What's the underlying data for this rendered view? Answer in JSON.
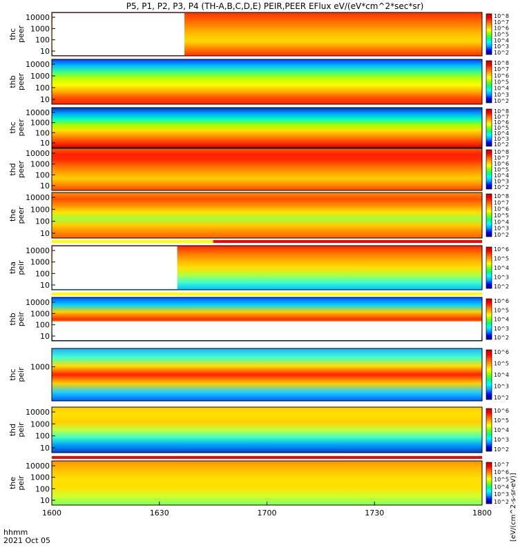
{
  "title": "P5, P1, P2, P3, P4 (TH-A,B,C,D,E) PEIR,PEER EFlux eV/(eV*cm^2*sec*sr)",
  "footer": {
    "axis_label": "hhmm",
    "date": "2021 Oct 05"
  },
  "colorbar_unit_label": "[eV/(cm^2-s-sr-eV)]",
  "colors": {
    "spectrum": [
      "#000080",
      "#0000ff",
      "#00a0ff",
      "#00ffff",
      "#00ff80",
      "#80ff00",
      "#ffff00",
      "#ffb000",
      "#ff6000",
      "#ff0000",
      "#c00000"
    ],
    "flag_red": "#ff0000",
    "flag_yellow": "#ffff00",
    "frame": "#000000"
  },
  "chart_data": {
    "type": "heatmap",
    "x_axis": {
      "label": "hhmm",
      "ticks": [
        "1600",
        "1630",
        "1700",
        "1730",
        "1800"
      ],
      "range": [
        "1600",
        "1800"
      ]
    },
    "panels": [
      {
        "id": "thc_peer",
        "ylabel": [
          "thc",
          "peer"
        ],
        "y_scale": "log",
        "y_ticks": [
          "10000",
          "1000",
          "100",
          "10"
        ],
        "cbar_ticks": [
          "10^8",
          "10^7",
          "10^6",
          "10^5",
          "10^4",
          "10^3",
          "10^2"
        ],
        "data_start": "1637"
      },
      {
        "id": "thb_peer",
        "ylabel": [
          "thb",
          "peer"
        ],
        "y_scale": "log",
        "y_ticks": [
          "10000",
          "1000",
          "100",
          "10"
        ],
        "cbar_ticks": [
          "10^8",
          "10^7",
          "10^6",
          "10^5",
          "10^4",
          "10^3",
          "10^2"
        ]
      },
      {
        "id": "thc_peer_2",
        "ylabel": [
          "thc",
          "peer"
        ],
        "y_scale": "log",
        "y_ticks": [
          "10000",
          "1000",
          "100",
          "10"
        ],
        "cbar_ticks": [
          "10^8",
          "10^7",
          "10^6",
          "10^5",
          "10^4",
          "10^3",
          "10^2"
        ]
      },
      {
        "id": "thd_peer",
        "ylabel": [
          "thd",
          "peer"
        ],
        "y_scale": "log",
        "y_ticks": [
          "10000",
          "1000",
          "100",
          "10"
        ],
        "cbar_ticks": [
          "10^8",
          "10^7",
          "10^6",
          "10^5",
          "10^4",
          "10^3",
          "10^2"
        ]
      },
      {
        "id": "the_peer",
        "ylabel": [
          "the",
          "peer"
        ],
        "y_scale": "log",
        "y_ticks": [
          "10000",
          "1000",
          "100",
          "10"
        ],
        "cbar_ticks": [
          "10^8",
          "10^7",
          "10^6",
          "10^5",
          "10^4",
          "10^3",
          "10^2"
        ]
      },
      {
        "id": "tha_peir",
        "ylabel": [
          "tha",
          "peir"
        ],
        "y_scale": "log",
        "y_ticks": [
          "10000",
          "1000",
          "100",
          "10"
        ],
        "cbar_ticks": [
          "10^6",
          "10^5",
          "10^4",
          "10^3",
          "10^2"
        ],
        "data_start": "1635"
      },
      {
        "id": "thb_peir",
        "ylabel": [
          "thb",
          "peir"
        ],
        "y_scale": "log",
        "y_ticks": [
          "10000",
          "1000",
          "100",
          "10"
        ],
        "cbar_ticks": [
          "10^6",
          "10^5",
          "10^4",
          "10^3",
          "10^2"
        ]
      },
      {
        "id": "thc_peir",
        "ylabel": [
          "thc",
          "peir"
        ],
        "y_scale": "log",
        "y_ticks": [
          "1000"
        ],
        "cbar_ticks": [
          "10^6",
          "10^5",
          "10^4",
          "10^3",
          "10^2"
        ]
      },
      {
        "id": "thd_peir",
        "ylabel": [
          "thd",
          "peir"
        ],
        "y_scale": "log",
        "y_ticks": [
          "10000",
          "1000",
          "100",
          "10"
        ],
        "cbar_ticks": [
          "10^6",
          "10^5",
          "10^4",
          "10^3",
          "10^2"
        ]
      },
      {
        "id": "the_peir",
        "ylabel": [
          "the",
          "peir"
        ],
        "y_scale": "log",
        "y_ticks": [
          "10000",
          "1000",
          "100",
          "10"
        ],
        "cbar_ticks": [
          "10^7",
          "10^6",
          "10^5",
          "10^4",
          "10^3",
          "10^2"
        ]
      }
    ],
    "flag_bars": [
      {
        "after": "the_peer",
        "segments": [
          {
            "from": "1600",
            "to": "1645",
            "color": "yellow"
          },
          {
            "from": "1645",
            "to": "1800",
            "color": "red"
          }
        ]
      },
      {
        "after": "tha_peir",
        "segments": [
          {
            "from": "1600",
            "to": "1800",
            "color": "yellow"
          }
        ]
      },
      {
        "after": "thd_peir",
        "segments": [
          {
            "from": "1600",
            "to": "1800",
            "color": "red"
          }
        ]
      }
    ]
  }
}
